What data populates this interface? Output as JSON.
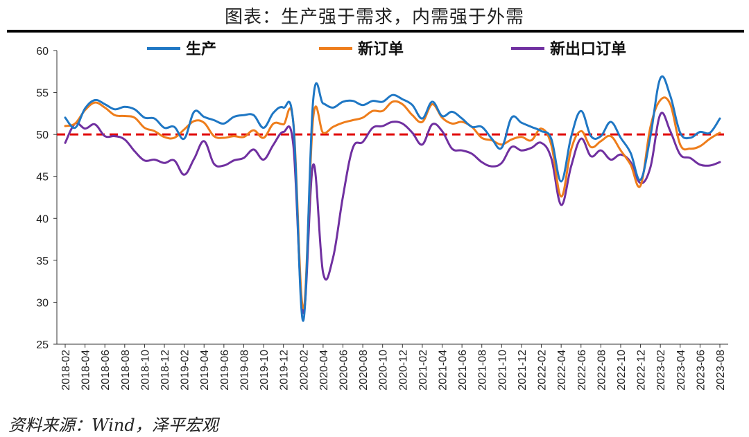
{
  "title": "图表：生产强于需求，内需强于外需",
  "source": "资料来源：Wind，泽平宏观",
  "colors": {
    "production": "#1f77c4",
    "new_orders": "#ee7d1b",
    "export_orders": "#7030a0",
    "threshold": "#e00000"
  },
  "chart_data": {
    "type": "line",
    "title": "图表：生产强于需求，内需强于外需",
    "xlabel": "",
    "ylabel": "",
    "ylim": [
      25,
      60
    ],
    "yticks": [
      25,
      30,
      35,
      40,
      45,
      50,
      55,
      60
    ],
    "reference_line": 50,
    "legend_placement": "top",
    "grid": false,
    "x": [
      "2018-02",
      "2018-03",
      "2018-04",
      "2018-05",
      "2018-06",
      "2018-07",
      "2018-08",
      "2018-09",
      "2018-10",
      "2018-11",
      "2018-12",
      "2019-01",
      "2019-02",
      "2019-03",
      "2019-04",
      "2019-05",
      "2019-06",
      "2019-07",
      "2019-08",
      "2019-09",
      "2019-10",
      "2019-11",
      "2019-12",
      "2020-01",
      "2020-02",
      "2020-03",
      "2020-04",
      "2020-05",
      "2020-06",
      "2020-07",
      "2020-08",
      "2020-09",
      "2020-10",
      "2020-11",
      "2020-12",
      "2021-01",
      "2021-02",
      "2021-03",
      "2021-04",
      "2021-05",
      "2021-06",
      "2021-07",
      "2021-08",
      "2021-09",
      "2021-10",
      "2021-11",
      "2021-12",
      "2022-01",
      "2022-02",
      "2022-03",
      "2022-04",
      "2022-05",
      "2022-06",
      "2022-07",
      "2022-08",
      "2022-09",
      "2022-10",
      "2022-11",
      "2022-12",
      "2023-01",
      "2023-02",
      "2023-03",
      "2023-04",
      "2023-05",
      "2023-06",
      "2023-07",
      "2023-08"
    ],
    "xticklabels": [
      "2018-02",
      "2018-04",
      "2018-06",
      "2018-08",
      "2018-10",
      "2018-12",
      "2019-02",
      "2019-04",
      "2019-06",
      "2019-08",
      "2019-10",
      "2019-12",
      "2020-02",
      "2020-04",
      "2020-06",
      "2020-08",
      "2020-10",
      "2020-12",
      "2021-02",
      "2021-04",
      "2021-06",
      "2021-08",
      "2021-10",
      "2021-12",
      "2022-02",
      "2022-04",
      "2022-06",
      "2022-08",
      "2022-10",
      "2022-12",
      "2023-02",
      "2023-04",
      "2023-06",
      "2023-08"
    ],
    "series": [
      {
        "name": "生产",
        "key": "production",
        "values": [
          52.0,
          50.8,
          53.1,
          54.1,
          53.6,
          53.0,
          53.3,
          53.0,
          52.0,
          51.9,
          50.8,
          50.9,
          49.5,
          52.7,
          52.1,
          51.7,
          51.3,
          52.1,
          52.3,
          52.3,
          50.8,
          52.6,
          53.2,
          51.3,
          27.8,
          54.1,
          53.7,
          53.2,
          53.9,
          54.0,
          53.5,
          54.0,
          53.9,
          54.7,
          54.2,
          53.5,
          51.9,
          53.9,
          52.2,
          52.7,
          51.9,
          50.9,
          50.9,
          49.5,
          48.4,
          52.0,
          51.4,
          50.9,
          50.4,
          49.5,
          44.4,
          49.7,
          52.8,
          49.8,
          49.8,
          51.5,
          49.6,
          47.8,
          44.6,
          49.8,
          56.7,
          54.6,
          50.2,
          49.6,
          50.3,
          50.2,
          51.9
        ]
      },
      {
        "name": "新订单",
        "key": "new_orders",
        "values": [
          51.0,
          51.3,
          52.9,
          53.8,
          53.2,
          52.3,
          52.2,
          52.0,
          50.8,
          50.4,
          49.7,
          49.6,
          50.6,
          51.6,
          51.4,
          49.8,
          49.6,
          49.8,
          49.7,
          50.5,
          49.6,
          51.3,
          51.2,
          51.4,
          29.3,
          52.0,
          50.2,
          50.9,
          51.4,
          51.7,
          52.0,
          52.8,
          52.8,
          53.9,
          53.6,
          52.3,
          51.5,
          53.6,
          52.0,
          51.3,
          51.5,
          50.9,
          49.6,
          49.3,
          48.8,
          49.4,
          49.7,
          49.3,
          50.7,
          48.8,
          42.6,
          48.2,
          50.4,
          48.5,
          49.2,
          49.8,
          48.1,
          46.4,
          43.9,
          50.9,
          54.1,
          53.6,
          48.8,
          48.3,
          48.6,
          49.5,
          50.2
        ]
      },
      {
        "name": "新出口订单",
        "key": "export_orders",
        "values": [
          49.0,
          51.3,
          50.7,
          51.2,
          49.8,
          49.8,
          49.4,
          48.0,
          46.9,
          47.0,
          46.6,
          46.9,
          45.2,
          47.1,
          49.2,
          46.5,
          46.3,
          46.9,
          47.2,
          48.2,
          47.0,
          48.8,
          50.3,
          48.7,
          28.7,
          46.4,
          33.5,
          35.3,
          42.6,
          48.4,
          49.1,
          50.8,
          51.0,
          51.5,
          51.3,
          50.2,
          48.8,
          51.2,
          50.4,
          48.3,
          48.1,
          47.7,
          46.7,
          46.2,
          46.6,
          48.5,
          48.1,
          48.4,
          49.0,
          47.2,
          41.6,
          46.2,
          49.5,
          47.4,
          48.1,
          47.0,
          47.6,
          46.7,
          44.2,
          46.1,
          52.4,
          50.4,
          47.6,
          47.2,
          46.4,
          46.3,
          46.7
        ]
      }
    ]
  }
}
